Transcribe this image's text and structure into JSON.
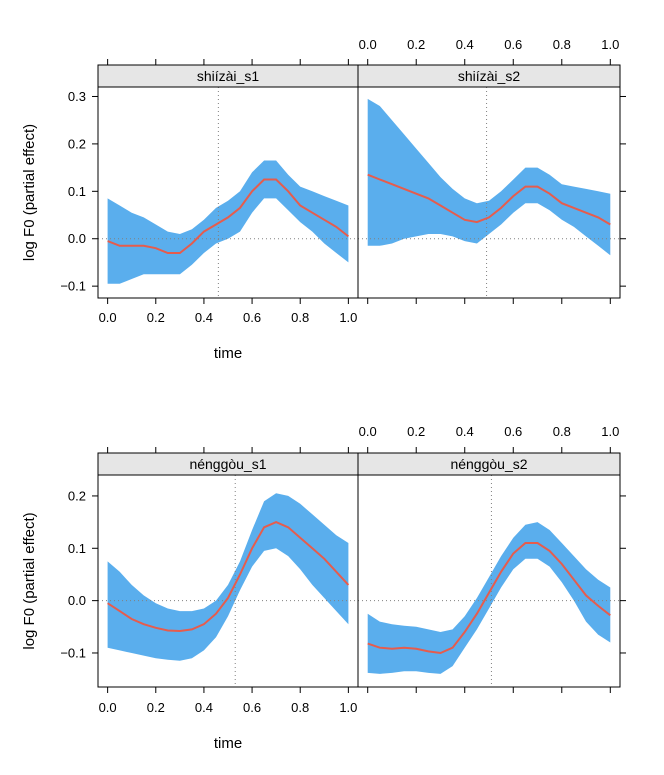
{
  "figure": {
    "plots": [
      {
        "ylabel": "log F0 (partial effect)",
        "xlabel": "time",
        "ylim": [
          -0.125,
          0.32
        ],
        "yticks": [
          -0.1,
          0.0,
          0.1,
          0.2,
          0.3
        ],
        "ytick_labels": [
          "−0.1",
          "0.0",
          "0.1",
          "0.2",
          "0.3"
        ],
        "xlim": [
          -0.04,
          1.04
        ],
        "xticks": [
          0.0,
          0.2,
          0.4,
          0.6,
          0.8,
          1.0
        ],
        "xtick_labels": [
          "0.0",
          "0.2",
          "0.4",
          "0.6",
          "0.8",
          "1.0"
        ]
      },
      {
        "ylabel": "log F0 (partial effect)",
        "xlabel": "time",
        "ylim": [
          -0.165,
          0.24
        ],
        "yticks": [
          -0.1,
          0.0,
          0.1,
          0.2
        ],
        "ytick_labels": [
          "−0.1",
          "0.0",
          "0.1",
          "0.2"
        ],
        "xlim": [
          -0.04,
          1.04
        ],
        "xticks": [
          0.0,
          0.2,
          0.4,
          0.6,
          0.8,
          1.0
        ],
        "xtick_labels": [
          "0.0",
          "0.2",
          "0.4",
          "0.6",
          "0.8",
          "1.0"
        ]
      }
    ]
  },
  "chart_data": [
    {
      "type": "area",
      "title": "shiízài_s1",
      "xlabel": "time",
      "ylabel": "log F0 (partial effect)",
      "x": [
        0.0,
        0.05,
        0.1,
        0.15,
        0.2,
        0.25,
        0.3,
        0.35,
        0.4,
        0.45,
        0.5,
        0.55,
        0.6,
        0.65,
        0.7,
        0.75,
        0.8,
        0.85,
        0.9,
        0.95,
        1.0
      ],
      "series": [
        {
          "name": "fit",
          "values": [
            -0.005,
            -0.015,
            -0.015,
            -0.015,
            -0.02,
            -0.03,
            -0.03,
            -0.01,
            0.015,
            0.03,
            0.045,
            0.065,
            0.1,
            0.125,
            0.125,
            0.1,
            0.07,
            0.055,
            0.04,
            0.025,
            0.005
          ]
        },
        {
          "name": "upper",
          "values": [
            0.085,
            0.07,
            0.055,
            0.045,
            0.03,
            0.015,
            0.01,
            0.02,
            0.04,
            0.065,
            0.08,
            0.1,
            0.14,
            0.165,
            0.165,
            0.135,
            0.11,
            0.1,
            0.09,
            0.08,
            0.07
          ]
        },
        {
          "name": "lower",
          "values": [
            -0.095,
            -0.095,
            -0.085,
            -0.075,
            -0.075,
            -0.075,
            -0.075,
            -0.055,
            -0.03,
            -0.01,
            0.0,
            0.015,
            0.055,
            0.085,
            0.085,
            0.06,
            0.035,
            0.015,
            -0.01,
            -0.03,
            -0.05
          ]
        }
      ],
      "vline_x": 0.46,
      "hline_y": 0.0
    },
    {
      "type": "area",
      "title": "shiízài_s2",
      "xlabel": "time",
      "ylabel": "log F0 (partial effect)",
      "x": [
        0.0,
        0.05,
        0.1,
        0.15,
        0.2,
        0.25,
        0.3,
        0.35,
        0.4,
        0.45,
        0.5,
        0.55,
        0.6,
        0.65,
        0.7,
        0.75,
        0.8,
        0.85,
        0.9,
        0.95,
        1.0
      ],
      "series": [
        {
          "name": "fit",
          "values": [
            0.135,
            0.125,
            0.115,
            0.105,
            0.095,
            0.085,
            0.07,
            0.055,
            0.04,
            0.035,
            0.045,
            0.065,
            0.09,
            0.11,
            0.11,
            0.095,
            0.075,
            0.065,
            0.055,
            0.045,
            0.03
          ]
        },
        {
          "name": "upper",
          "values": [
            0.295,
            0.28,
            0.25,
            0.22,
            0.19,
            0.16,
            0.13,
            0.105,
            0.085,
            0.075,
            0.08,
            0.1,
            0.125,
            0.15,
            0.15,
            0.135,
            0.115,
            0.11,
            0.105,
            0.1,
            0.095
          ]
        },
        {
          "name": "lower",
          "values": [
            -0.015,
            -0.015,
            -0.01,
            0.0,
            0.005,
            0.01,
            0.01,
            0.005,
            -0.005,
            -0.01,
            0.01,
            0.03,
            0.055,
            0.075,
            0.075,
            0.06,
            0.04,
            0.025,
            0.005,
            -0.015,
            -0.035
          ]
        }
      ],
      "vline_x": 0.49,
      "hline_y": 0.0
    },
    {
      "type": "area",
      "title": "nénggòu_s1",
      "xlabel": "time",
      "ylabel": "log F0 (partial effect)",
      "x": [
        0.0,
        0.05,
        0.1,
        0.15,
        0.2,
        0.25,
        0.3,
        0.35,
        0.4,
        0.45,
        0.5,
        0.55,
        0.6,
        0.65,
        0.7,
        0.75,
        0.8,
        0.85,
        0.9,
        0.95,
        1.0
      ],
      "series": [
        {
          "name": "fit",
          "values": [
            -0.005,
            -0.02,
            -0.035,
            -0.045,
            -0.052,
            -0.057,
            -0.058,
            -0.055,
            -0.045,
            -0.025,
            0.005,
            0.05,
            0.1,
            0.14,
            0.15,
            0.14,
            0.12,
            0.1,
            0.08,
            0.055,
            0.03
          ]
        },
        {
          "name": "upper",
          "values": [
            0.075,
            0.055,
            0.03,
            0.01,
            -0.005,
            -0.015,
            -0.02,
            -0.02,
            -0.015,
            0.0,
            0.03,
            0.075,
            0.135,
            0.19,
            0.205,
            0.2,
            0.185,
            0.165,
            0.145,
            0.125,
            0.11
          ]
        },
        {
          "name": "lower",
          "values": [
            -0.09,
            -0.095,
            -0.1,
            -0.105,
            -0.11,
            -0.113,
            -0.115,
            -0.11,
            -0.095,
            -0.07,
            -0.03,
            0.02,
            0.065,
            0.095,
            0.1,
            0.085,
            0.06,
            0.03,
            0.005,
            -0.02,
            -0.045
          ]
        }
      ],
      "vline_x": 0.53,
      "hline_y": 0.0
    },
    {
      "type": "area",
      "title": "nénggòu_s2",
      "xlabel": "time",
      "ylabel": "log F0 (partial effect)",
      "x": [
        0.0,
        0.05,
        0.1,
        0.15,
        0.2,
        0.25,
        0.3,
        0.35,
        0.4,
        0.45,
        0.5,
        0.55,
        0.6,
        0.65,
        0.7,
        0.75,
        0.8,
        0.85,
        0.9,
        0.95,
        1.0
      ],
      "series": [
        {
          "name": "fit",
          "values": [
            -0.082,
            -0.09,
            -0.092,
            -0.09,
            -0.092,
            -0.097,
            -0.1,
            -0.09,
            -0.06,
            -0.025,
            0.015,
            0.055,
            0.09,
            0.11,
            0.11,
            0.095,
            0.07,
            0.04,
            0.01,
            -0.01,
            -0.028
          ]
        },
        {
          "name": "upper",
          "values": [
            -0.025,
            -0.04,
            -0.045,
            -0.048,
            -0.05,
            -0.055,
            -0.06,
            -0.055,
            -0.03,
            0.005,
            0.045,
            0.085,
            0.12,
            0.145,
            0.15,
            0.135,
            0.11,
            0.085,
            0.06,
            0.04,
            0.025
          ]
        },
        {
          "name": "lower",
          "values": [
            -0.138,
            -0.14,
            -0.138,
            -0.135,
            -0.135,
            -0.138,
            -0.14,
            -0.125,
            -0.09,
            -0.055,
            -0.015,
            0.025,
            0.06,
            0.08,
            0.08,
            0.065,
            0.035,
            0.0,
            -0.04,
            -0.065,
            -0.08
          ]
        }
      ],
      "vline_x": 0.51,
      "hline_y": 0.0
    }
  ],
  "colors": {
    "band": "#5aaeed",
    "line": "#e65c4d",
    "strip": "#e6e6e6",
    "axis": "#000000",
    "refline": "#808080"
  }
}
